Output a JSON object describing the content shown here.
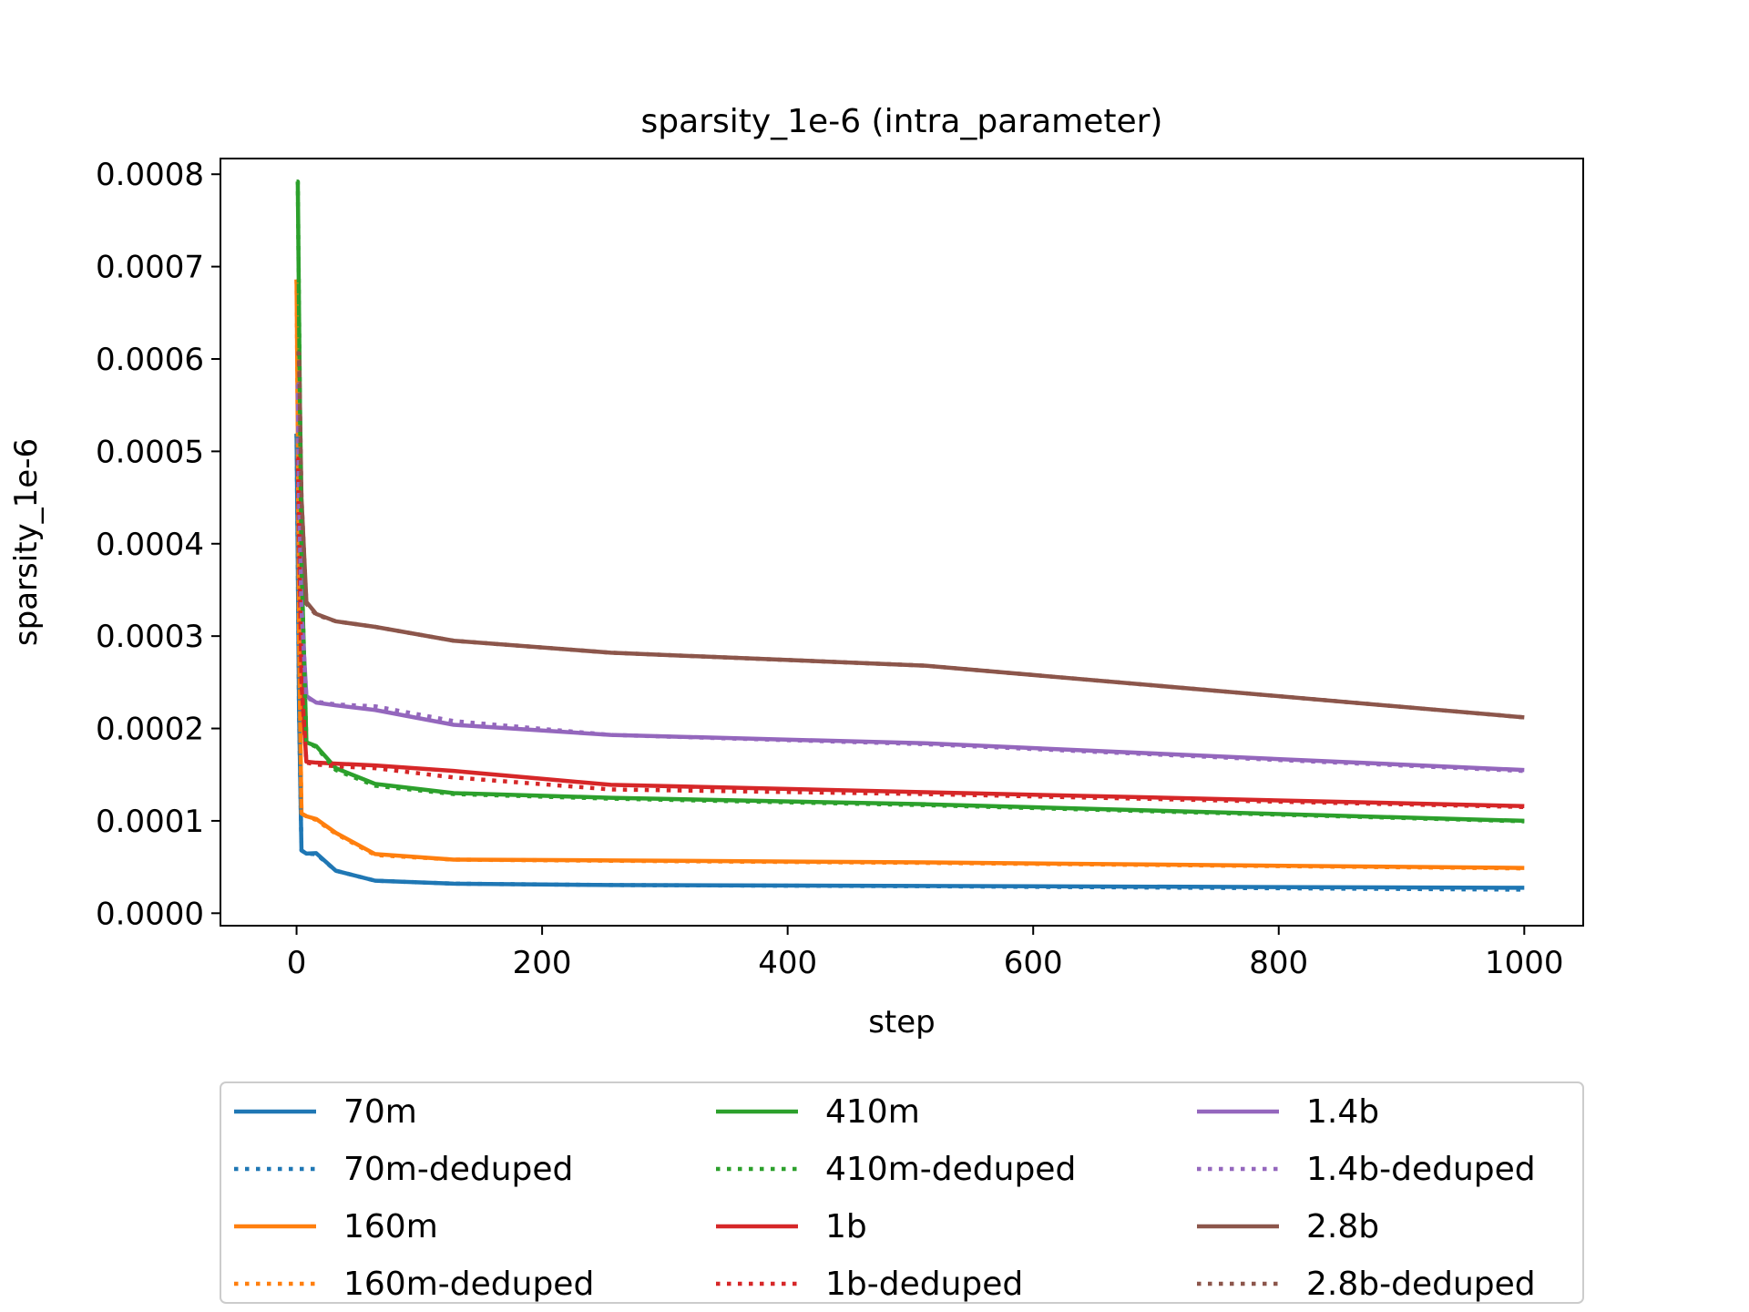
{
  "chart_data": {
    "type": "line",
    "title": "sparsity_1e-6 (intra_parameter)",
    "xlabel": "step",
    "ylabel": "sparsity_1e-6",
    "xlim": [
      -62,
      1048
    ],
    "ylim": [
      -1.35e-05,
      0.000817
    ],
    "xticks": [
      0,
      200,
      400,
      600,
      800,
      1000
    ],
    "xtick_labels": [
      "0",
      "200",
      "400",
      "600",
      "800",
      "1000"
    ],
    "yticks": [
      0,
      0.0001,
      0.0002,
      0.0003,
      0.0004,
      0.0005,
      0.0006,
      0.0007,
      0.0008
    ],
    "ytick_labels": [
      "0.0000",
      "0.0001",
      "0.0002",
      "0.0003",
      "0.0004",
      "0.0005",
      "0.0006",
      "0.0007",
      "0.0008"
    ],
    "grid": false,
    "legend_position": "below plot, 3 columns",
    "x": [
      0,
      1,
      2,
      4,
      8,
      16,
      32,
      64,
      128,
      256,
      512,
      1000
    ],
    "series": [
      {
        "name": "70m",
        "style": "solid",
        "color": "#1f77b4",
        "values": [
          0.000519,
          0.00038,
          0.00022,
          6.8e-05,
          6.45e-05,
          6.5e-05,
          4.6e-05,
          3.52e-05,
          3.2e-05,
          3.05e-05,
          2.95e-05,
          2.75e-05
        ]
      },
      {
        "name": "70m-deduped",
        "style": "dotted",
        "color": "#1f77b4",
        "values": [
          0.000519,
          0.00038,
          0.00022,
          6.8e-05,
          6.45e-05,
          6.4e-05,
          4.6e-05,
          3.52e-05,
          3.2e-05,
          3.05e-05,
          2.92e-05,
          2.55e-05
        ]
      },
      {
        "name": "160m",
        "style": "solid",
        "color": "#ff7f0e",
        "values": [
          0.000686,
          0.00052,
          0.0003,
          0.000108,
          0.000105,
          0.000102,
          8.7e-05,
          6.4e-05,
          5.8e-05,
          5.72e-05,
          5.5e-05,
          4.9e-05
        ]
      },
      {
        "name": "160m-deduped",
        "style": "dotted",
        "color": "#ff7f0e",
        "values": [
          0.000686,
          0.00052,
          0.0003,
          0.000108,
          0.000105,
          0.000101,
          8.6e-05,
          6.3e-05,
          5.8e-05,
          5.68e-05,
          5.45e-05,
          4.85e-05
        ]
      },
      {
        "name": "410m",
        "style": "solid",
        "color": "#2ca02c",
        "values": [
          0.000792,
          0.000792,
          0.00065,
          0.00038,
          0.000185,
          0.000181,
          0.000157,
          0.00014,
          0.00013,
          0.000125,
          0.000118,
          0.0001
        ]
      },
      {
        "name": "410m-deduped",
        "style": "dotted",
        "color": "#2ca02c",
        "values": [
          0.000792,
          0.000792,
          0.00065,
          0.00038,
          0.000185,
          0.00018,
          0.000155,
          0.000138,
          0.000129,
          0.000124,
          0.000117,
          9.95e-05
        ]
      },
      {
        "name": "1b",
        "style": "solid",
        "color": "#d62728",
        "values": [
          0.000492,
          0.000492,
          0.00042,
          0.00025,
          0.000164,
          0.000163,
          0.000162,
          0.00016,
          0.000154,
          0.000139,
          0.000131,
          0.000116
        ]
      },
      {
        "name": "1b-deduped",
        "style": "dotted",
        "color": "#d62728",
        "values": [
          0.000492,
          0.000492,
          0.00042,
          0.00025,
          0.000163,
          0.000161,
          0.000159,
          0.000157,
          0.000147,
          0.000134,
          0.000129,
          0.000115
        ]
      },
      {
        "name": "1.4b",
        "style": "solid",
        "color": "#9467bd",
        "values": [
          0.000572,
          0.000572,
          0.00045,
          0.00033,
          0.000235,
          0.000228,
          0.000225,
          0.00022,
          0.000204,
          0.000193,
          0.000184,
          0.000155
        ]
      },
      {
        "name": "1.4b-deduped",
        "style": "dotted",
        "color": "#9467bd",
        "values": [
          0.000572,
          0.000572,
          0.00045,
          0.00033,
          0.000233,
          0.000229,
          0.000226,
          0.000224,
          0.000208,
          0.000193,
          0.000183,
          0.000154
        ]
      },
      {
        "name": "2.8b",
        "style": "solid",
        "color": "#8c564b",
        "values": [
          0.000606,
          0.000606,
          0.000606,
          0.00045,
          0.000337,
          0.000324,
          0.000316,
          0.00031,
          0.000295,
          0.000282,
          0.000268,
          0.000212
        ]
      },
      {
        "name": "2.8b-deduped",
        "style": "dotted",
        "color": "#8c564b",
        "values": [
          0.000606,
          0.000606,
          0.000606,
          0.00045,
          0.000335,
          0.000323,
          0.000316,
          0.00031,
          0.000295,
          0.000282,
          0.000268,
          0.000212
        ]
      }
    ]
  }
}
